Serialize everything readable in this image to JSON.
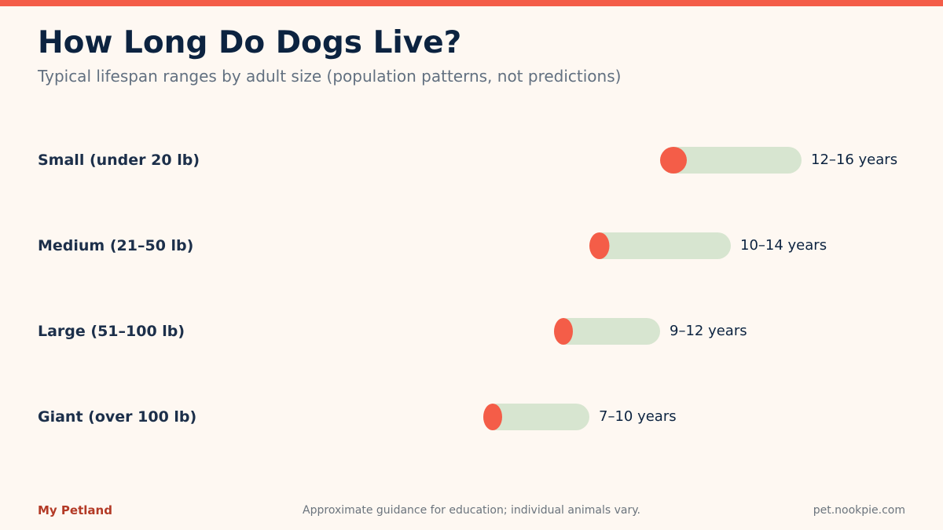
{
  "header": {
    "title": "How Long Do Dogs Live?",
    "subtitle": "Typical lifespan ranges by adult size (population patterns, not predictions)"
  },
  "footer": {
    "brand": "My Petland",
    "note": "Approximate guidance for education; individual animals vary.",
    "url": "pet.nookpie.com"
  },
  "colors": {
    "accent": "#f45d48",
    "range_fill": "#d7e5d0",
    "title": "#0c2340",
    "label": "#1c2f4a",
    "brand": "#b33a26"
  },
  "chart_data": {
    "type": "range_bar",
    "title": "How Long Do Dogs Live?",
    "subtitle": "Typical lifespan ranges by adult size (population patterns, not predictions)",
    "unit": "years",
    "categories": [
      "Small (under 20 lb)",
      "Medium (21–50 lb)",
      "Large (51–100 lb)",
      "Giant (over 100 lb)"
    ],
    "ranges": [
      {
        "min": 12,
        "max": 16,
        "label": "12–16 years"
      },
      {
        "min": 10,
        "max": 14,
        "label": "10–14 years"
      },
      {
        "min": 9,
        "max": 12,
        "label": "9–12 years"
      },
      {
        "min": 7,
        "max": 10,
        "label": "7–10 years"
      }
    ],
    "axis_visible": false,
    "grid": false,
    "legend": "none"
  }
}
